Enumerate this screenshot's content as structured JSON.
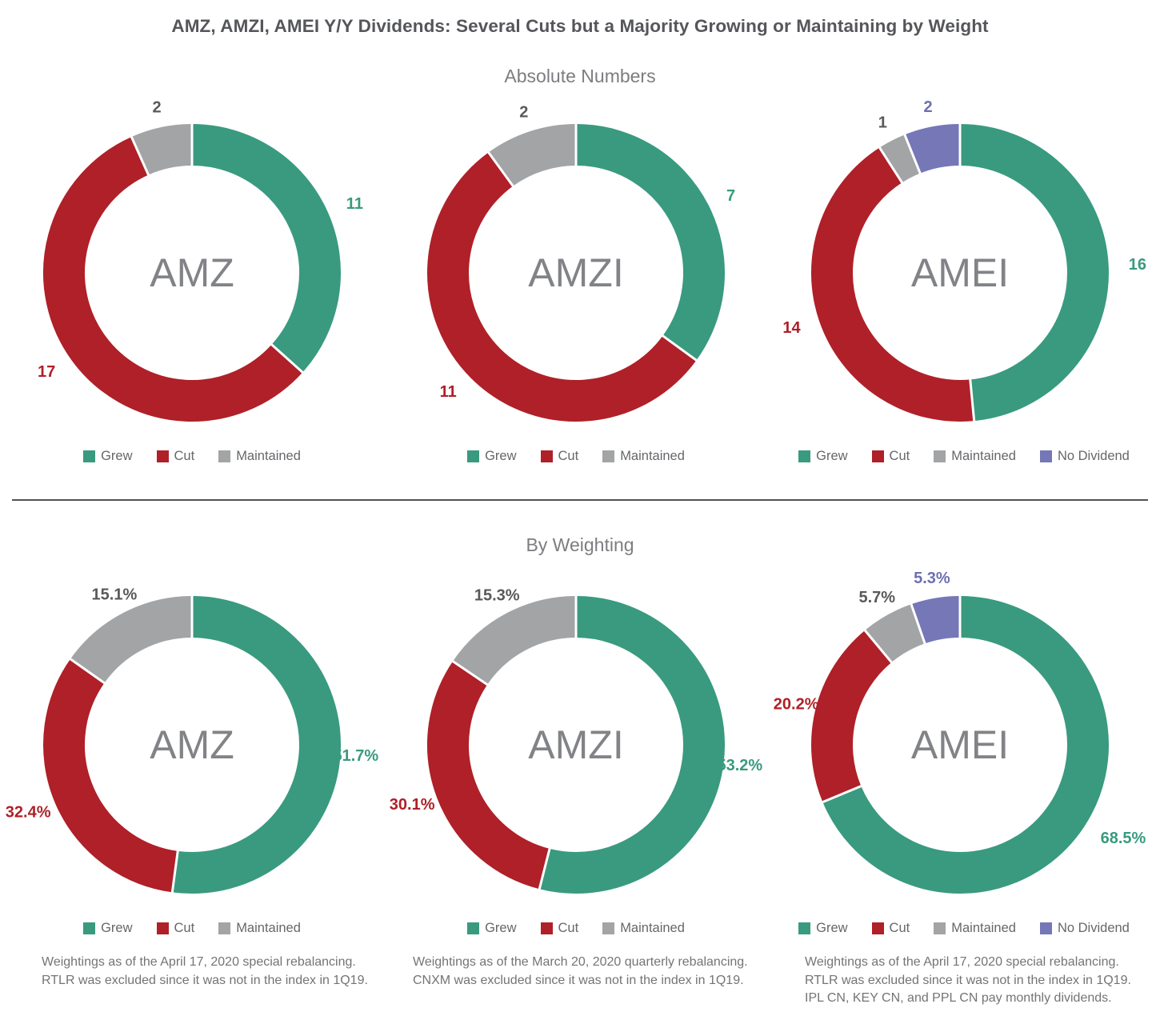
{
  "title": "AMZ, AMZI, AMEI Y/Y Dividends: Several Cuts but a Majority Growing or Maintaining by Weight",
  "sections": {
    "absolute": {
      "subtitle": "Absolute Numbers"
    },
    "weighting": {
      "subtitle": "By Weighting"
    }
  },
  "colors": {
    "segments": {
      "Grew": "#399A7F",
      "Cut": "#AF2028",
      "Maintained": "#A2A4A6",
      "No Dividend": "#7577B7"
    },
    "value_labels": {
      "Grew": "#399A7F",
      "Cut": "#AF2028",
      "Maintained": "#58595B",
      "No Dividend": "#6E6FB0"
    },
    "title": "#55565A",
    "subtitle": "#7C7D80",
    "center_label": "#828387",
    "legend_text": "#66676B",
    "footnote_text": "#737477",
    "divider": "#515254",
    "segment_gap": "#FFFFFF"
  },
  "chart_data": [
    {
      "type": "pie",
      "variant": "donut",
      "section": "Absolute Numbers",
      "center_label": "AMZ",
      "categories": [
        "Grew",
        "Cut",
        "Maintained"
      ],
      "values": [
        11,
        17,
        2
      ],
      "value_labels": [
        "11",
        "17",
        "2"
      ],
      "legend": [
        "Grew",
        "Cut",
        "Maintained"
      ],
      "legend_position": "bottom"
    },
    {
      "type": "pie",
      "variant": "donut",
      "section": "Absolute Numbers",
      "center_label": "AMZI",
      "categories": [
        "Grew",
        "Cut",
        "Maintained"
      ],
      "values": [
        7,
        11,
        2
      ],
      "value_labels": [
        "7",
        "11",
        "2"
      ],
      "legend": [
        "Grew",
        "Cut",
        "Maintained"
      ],
      "legend_position": "bottom"
    },
    {
      "type": "pie",
      "variant": "donut",
      "section": "Absolute Numbers",
      "center_label": "AMEI",
      "categories": [
        "Grew",
        "Cut",
        "Maintained",
        "No Dividend"
      ],
      "values": [
        16,
        14,
        1,
        2
      ],
      "value_labels": [
        "16",
        "14",
        "1",
        "2"
      ],
      "legend": [
        "Grew",
        "Cut",
        "Maintained",
        "No Dividend"
      ],
      "legend_position": "bottom"
    },
    {
      "type": "pie",
      "variant": "donut",
      "section": "By Weighting",
      "center_label": "AMZ",
      "categories": [
        "Grew",
        "Cut",
        "Maintained"
      ],
      "values": [
        51.7,
        32.4,
        15.1
      ],
      "value_labels": [
        "51.7%",
        "32.4%",
        "15.1%"
      ],
      "legend": [
        "Grew",
        "Cut",
        "Maintained"
      ],
      "legend_position": "bottom"
    },
    {
      "type": "pie",
      "variant": "donut",
      "section": "By Weighting",
      "center_label": "AMZI",
      "categories": [
        "Grew",
        "Cut",
        "Maintained"
      ],
      "values": [
        53.2,
        30.1,
        15.3
      ],
      "value_labels": [
        "53.2%",
        "30.1%",
        "15.3%"
      ],
      "legend": [
        "Grew",
        "Cut",
        "Maintained"
      ],
      "legend_position": "bottom"
    },
    {
      "type": "pie",
      "variant": "donut",
      "section": "By Weighting",
      "center_label": "AMEI",
      "categories": [
        "Grew",
        "Cut",
        "Maintained",
        "No Dividend"
      ],
      "values": [
        68.5,
        20.2,
        5.7,
        5.3
      ],
      "value_labels": [
        "68.5%",
        "20.2%",
        "5.7%",
        "5.3%"
      ],
      "legend": [
        "Grew",
        "Cut",
        "Maintained",
        "No Dividend"
      ],
      "legend_position": "bottom"
    }
  ],
  "footnotes": [
    {
      "text": "Weightings as of the April 17, 2020 special rebalancing.\nRTLR was excluded since it was not in the index in 1Q19."
    },
    {
      "text": "Weightings as of the March 20, 2020 quarterly rebalancing.\nCNXM was excluded since it was not in the index in 1Q19."
    },
    {
      "text": "Weightings as of the April 17, 2020 special rebalancing.\nRTLR was excluded since it was not in the index in 1Q19.\nIPL CN, KEY CN, and PPL CN pay monthly dividends."
    }
  ]
}
